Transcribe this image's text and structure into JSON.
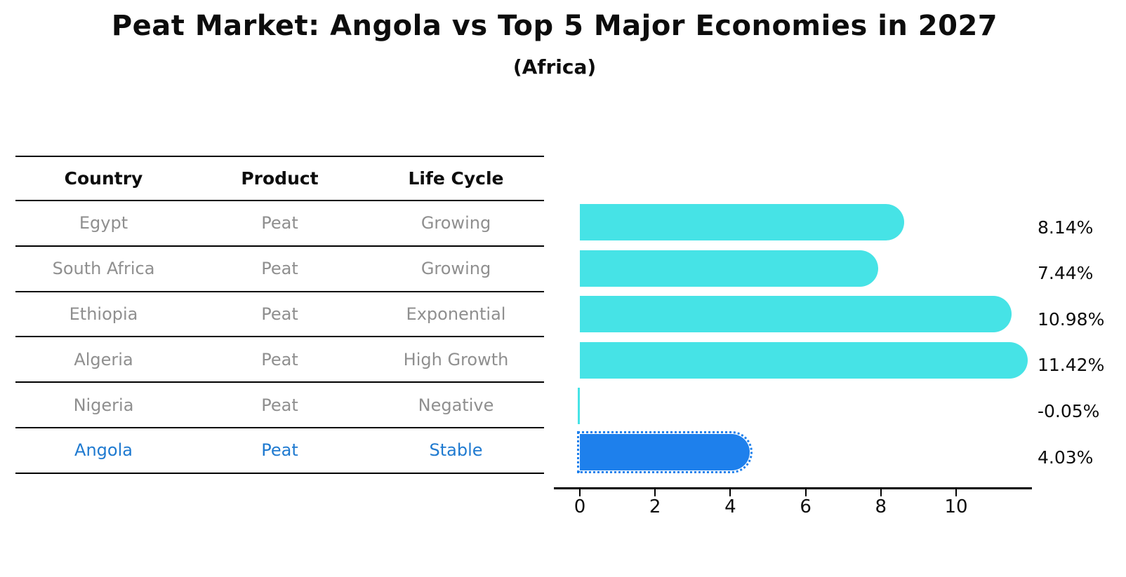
{
  "title": "Peat Market: Angola vs Top 5 Major Economies in 2027",
  "subtitle": "(Africa)",
  "table": {
    "headers": [
      "Country",
      "Product",
      "Life Cycle"
    ],
    "rows": [
      {
        "country": "Egypt",
        "product": "Peat",
        "life_cycle": "Growing",
        "highlight": false
      },
      {
        "country": "South Africa",
        "product": "Peat",
        "life_cycle": "Growing",
        "highlight": false
      },
      {
        "country": "Ethiopia",
        "product": "Peat",
        "life_cycle": "Exponential",
        "highlight": false
      },
      {
        "country": "Algeria",
        "product": "Peat",
        "life_cycle": "High Growth",
        "highlight": false
      },
      {
        "country": "Nigeria",
        "product": "Peat",
        "life_cycle": "Negative",
        "highlight": false
      },
      {
        "country": "Angola",
        "product": "Peat",
        "life_cycle": "Stable",
        "highlight": true
      }
    ]
  },
  "chart_data": {
    "type": "bar",
    "orientation": "horizontal",
    "title": "Peat Market: Angola vs Top 5 Major Economies in 2027",
    "subtitle": "(Africa)",
    "categories": [
      "Egypt",
      "South Africa",
      "Ethiopia",
      "Algeria",
      "Nigeria",
      "Angola"
    ],
    "values": [
      8.14,
      7.44,
      10.98,
      11.42,
      -0.05,
      4.03
    ],
    "value_labels": [
      "8.14%",
      "7.44%",
      "10.98%",
      "11.42%",
      "-0.05%",
      "4.03%"
    ],
    "unit": "percent",
    "x_ticks": [
      0,
      2,
      4,
      6,
      8,
      10
    ],
    "x_tick_labels": [
      "0",
      "2",
      "4",
      "6",
      "8",
      "10"
    ],
    "xlim": [
      -0.7,
      12.0
    ],
    "grid": false,
    "legend": false,
    "bar_color": "#46E3E6",
    "highlight_color": "#1E80EC",
    "highlight_index": 5,
    "highlight_style": "dotted-border"
  },
  "colors": {
    "background": "#ffffff",
    "text_primary": "#0d0d0d",
    "text_muted": "#8f8f8f",
    "text_highlight": "#1f7ad0",
    "bar_default": "#46E3E6",
    "bar_highlight": "#1E80EC",
    "rule": "#000000"
  }
}
